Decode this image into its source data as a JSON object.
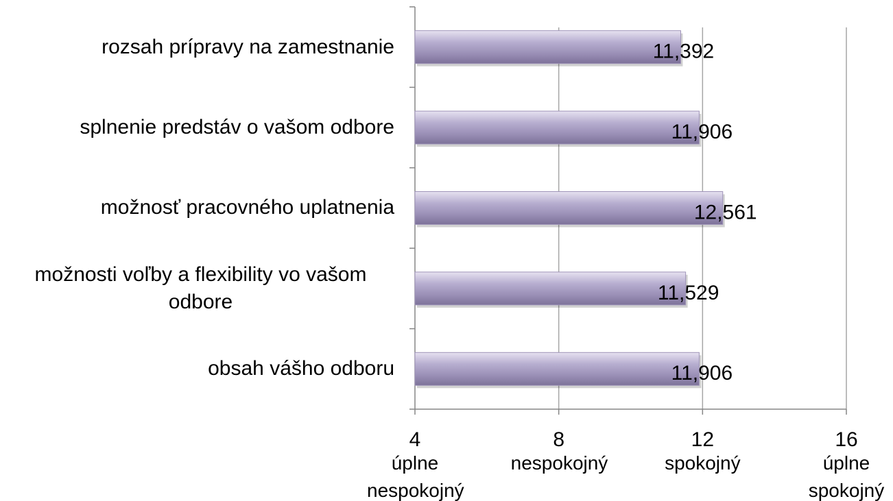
{
  "chart_data": {
    "type": "bar",
    "orientation": "horizontal",
    "categories": [
      "rozsah prípravy na zamestnanie",
      "splnenie predstáv o vašom odbore",
      "možnosť pracovného uplatnenia",
      "možnosti voľby a flexibility vo vašom odbore",
      "obsah vášho odboru"
    ],
    "values": [
      11.392,
      11.906,
      12.561,
      11.529,
      11.906
    ],
    "value_labels": [
      "11,392",
      "11,906",
      "12,561",
      "11,529",
      "11,906"
    ],
    "color": "#9e93b8",
    "xlim": [
      4,
      16
    ],
    "xticks": [
      4,
      8,
      12,
      16
    ],
    "xtick_annotations": [
      "úplne nespokojný",
      "nespokojný",
      "spokojný",
      "úplne spokojný"
    ],
    "grid": true
  }
}
